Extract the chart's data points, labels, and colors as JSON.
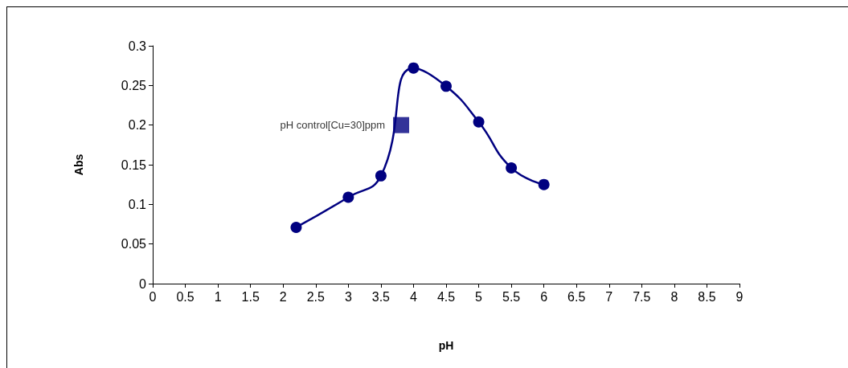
{
  "chart_data": {
    "type": "line",
    "xlabel": "pH",
    "ylabel": "Abs",
    "xlim": [
      0,
      9
    ],
    "xticks": [
      0,
      0.5,
      1,
      1.5,
      2,
      2.5,
      3,
      3.5,
      4,
      4.5,
      5,
      5.5,
      6,
      6.5,
      7,
      7.5,
      8,
      8.5,
      9
    ],
    "ylim": [
      0,
      0.3
    ],
    "yticks": [
      0,
      0.05,
      0.1,
      0.15,
      0.2,
      0.25,
      0.3
    ],
    "grid": false,
    "legend": false,
    "series": [
      {
        "color": "#000080",
        "marker": "circle",
        "x": [
          2.2,
          3,
          3.5,
          4,
          4.5,
          5,
          5.5,
          6
        ],
        "values": [
          0.071,
          0.109,
          0.136,
          0.272,
          0.249,
          0.204,
          0.146,
          0.125
        ]
      },
      {
        "type": "scatter",
        "name": "pH control[Cu=30]ppm",
        "color": "#000080",
        "marker": "square",
        "x": [
          3.81
        ],
        "values": [
          0.2
        ]
      }
    ]
  }
}
